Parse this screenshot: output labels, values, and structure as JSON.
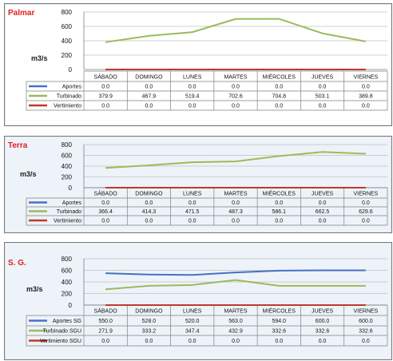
{
  "charts": [
    {
      "chart_data": {
        "type": "line",
        "title": "Palmar",
        "ylabel": "m3/s",
        "ylim": [
          0,
          800
        ],
        "yticks": [
          0,
          200,
          400,
          600,
          800
        ],
        "categories": [
          "SÁBADO",
          "DOMINGO",
          "LUNES",
          "MARTES",
          "MIÉRCOLES",
          "JUEVES",
          "VIERNES"
        ],
        "series": [
          {
            "name": "Aportes",
            "color": "#4472c4",
            "values": [
              0.0,
              0.0,
              0.0,
              0.0,
              0.0,
              0.0,
              0.0
            ],
            "labels": [
              "0.0",
              "0.0",
              "0.0",
              "0.0",
              "0.0",
              "0.0",
              "0.0"
            ]
          },
          {
            "name": "Turbinado",
            "color": "#9bbb59",
            "values": [
              379.9,
              467.9,
              519.4,
              702.6,
              704.8,
              503.1,
              389.8
            ],
            "labels": [
              "379.9",
              "467.9",
              "519.4",
              "702.6",
              "704.8",
              "503.1",
              "389.8"
            ]
          },
          {
            "name": "Vertimiento",
            "color": "#c0392b",
            "values": [
              0.0,
              0.0,
              0.0,
              0.0,
              0.0,
              0.0,
              0.0
            ],
            "labels": [
              "0.0",
              "0.0",
              "0.0",
              "0.0",
              "0.0",
              "0.0",
              "0.0"
            ]
          }
        ]
      }
    },
    {
      "chart_data": {
        "type": "line",
        "title": "Terra",
        "ylabel": "m3/s",
        "ylim": [
          0,
          800
        ],
        "yticks": [
          0,
          200,
          400,
          600,
          800
        ],
        "categories": [
          "SÁBADO",
          "DOMINGO",
          "LUNES",
          "MARTES",
          "MIÉRCOLES",
          "JUEVES",
          "VIERNES"
        ],
        "series": [
          {
            "name": "Aportes",
            "color": "#4472c4",
            "values": [
              0.0,
              0.0,
              0.0,
              0.0,
              0.0,
              0.0,
              0.0
            ],
            "labels": [
              "0.0",
              "0.0",
              "0.0",
              "0.0",
              "0.0",
              "0.0",
              "0.0"
            ]
          },
          {
            "name": "Turbinado",
            "color": "#9bbb59",
            "values": [
              366.4,
              414.3,
              471.5,
              487.3,
              586.1,
              662.5,
              629.6
            ],
            "labels": [
              "366.4",
              "414.3",
              "471.5",
              "487.3",
              "586.1",
              "662.5",
              "629.6"
            ]
          },
          {
            "name": "Vertimiento",
            "color": "#c0392b",
            "values": [
              0.0,
              0.0,
              0.0,
              0.0,
              0.0,
              0.0,
              0.0
            ],
            "labels": [
              "0.0",
              "0.0",
              "0.0",
              "0.0",
              "0.0",
              "0.0",
              "0.0"
            ]
          }
        ]
      }
    },
    {
      "chart_data": {
        "type": "line",
        "title": "S. G.",
        "ylabel": "m3/s",
        "ylim": [
          0,
          800
        ],
        "yticks": [
          0,
          200,
          400,
          600,
          800
        ],
        "categories": [
          "SÁBADO",
          "DOMINGO",
          "LUNES",
          "MARTES",
          "MIÉRCOLES",
          "JUEVES",
          "VIERNES"
        ],
        "series": [
          {
            "name": "Aportes SG",
            "color": "#4472c4",
            "values": [
              550.0,
              528.0,
              520.0,
              563.0,
              594.0,
              600.0,
              600.0
            ],
            "labels": [
              "550.0",
              "528.0",
              "520.0",
              "563.0",
              "594.0",
              "600.0",
              "600.0"
            ]
          },
          {
            "name": "Turbinado SGU",
            "color": "#9bbb59",
            "values": [
              271.9,
              333.2,
              347.4,
              432.9,
              332.6,
              332.6,
              332.6
            ],
            "labels": [
              "271.9",
              "333.2",
              "347.4",
              "432.9",
              "332.6",
              "332.6",
              "332.6"
            ]
          },
          {
            "name": "Vertimiento SGU",
            "color": "#c0392b",
            "values": [
              0.0,
              0.0,
              0.0,
              0.0,
              0.0,
              0.0,
              0.0
            ],
            "labels": [
              "0.0",
              "0.0",
              "0.0",
              "0.0",
              "0.0",
              "0.0",
              "0.0"
            ]
          }
        ]
      }
    }
  ]
}
